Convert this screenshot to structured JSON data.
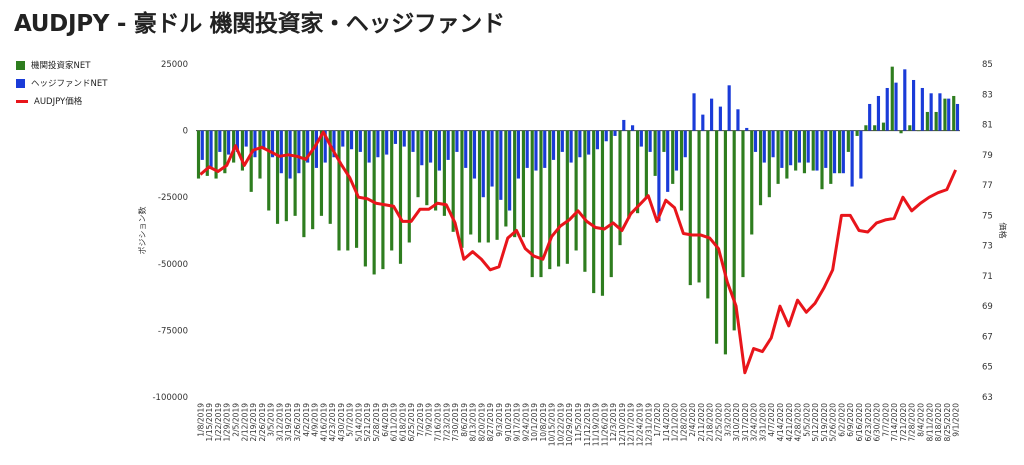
{
  "title": "AUDJPY - 豪ドル 機関投資家・ヘッジファンド",
  "chart_data": {
    "type": "bar",
    "xlabel": "",
    "ylabel": "ポジション数",
    "y2label": "価格",
    "ylim": [
      -100000,
      25000
    ],
    "yticks": [
      25000,
      0,
      -25000,
      -50000,
      -75000,
      -100000
    ],
    "y2lim": [
      63,
      85
    ],
    "y2ticks": [
      85,
      83,
      81,
      79,
      77,
      75,
      73,
      71,
      69,
      67,
      65,
      63
    ],
    "colors": {
      "inst": "#2e7d1f",
      "hedge": "#1a3bd8",
      "price": "#e8151b"
    },
    "categories": [
      "1/8/2019",
      "1/15/2019",
      "1/22/2019",
      "1/29/2019",
      "2/5/2019",
      "2/12/2019",
      "2/19/2019",
      "2/26/2019",
      "3/5/2019",
      "3/12/2019",
      "3/19/2019",
      "3/26/2019",
      "4/2/2019",
      "4/9/2019",
      "4/16/2019",
      "4/23/2019",
      "4/30/2019",
      "5/7/2019",
      "5/14/2019",
      "5/21/2019",
      "5/28/2019",
      "6/4/2019",
      "6/11/2019",
      "6/18/2019",
      "6/25/2019",
      "7/2/2019",
      "7/9/2019",
      "7/16/2019",
      "7/23/2019",
      "7/30/2019",
      "8/6/2019",
      "8/13/2019",
      "8/20/2019",
      "8/27/2019",
      "9/3/2019",
      "9/10/2019",
      "9/17/2019",
      "9/24/2019",
      "10/1/2019",
      "10/8/2019",
      "10/15/2019",
      "10/22/2019",
      "10/29/2019",
      "11/5/2019",
      "11/12/2019",
      "11/19/2019",
      "11/26/2019",
      "12/3/2019",
      "12/10/2019",
      "12/17/2019",
      "12/24/2019",
      "12/31/2019",
      "1/7/2020",
      "1/14/2020",
      "1/21/2020",
      "1/28/2020",
      "2/4/2020",
      "2/11/2020",
      "2/18/2020",
      "2/25/2020",
      "3/3/2020",
      "3/10/2020",
      "3/17/2020",
      "3/24/2020",
      "3/31/2020",
      "4/7/2020",
      "4/14/2020",
      "4/21/2020",
      "4/28/2020",
      "5/5/2020",
      "5/12/2020",
      "5/19/2020",
      "5/26/2020",
      "6/2/2020",
      "6/9/2020",
      "6/16/2020",
      "6/23/2020",
      "6/30/2020",
      "7/7/2020",
      "7/14/2020",
      "7/21/2020",
      "7/28/2020",
      "8/4/2020",
      "8/11/2020",
      "8/18/2020",
      "8/25/2020",
      "9/1/2020"
    ],
    "xtick_labels": [
      "1/8/2019",
      "1/15/2019",
      "1/22/2019",
      "1/29/2019",
      "2/5/2019",
      "2/12/2019",
      "2/19/2019",
      "2/26/2019",
      "3/5/2019",
      "3/12/2019",
      "3/19/2019",
      "3/26/2019",
      "4/2/2019",
      "4/9/2019",
      "4/16/2019",
      "4/23/2019",
      "4/30/2019",
      "5/7/2019",
      "5/14/2019",
      "5/21/2019",
      "5/28/2019",
      "6/4/2019",
      "6/11/2019",
      "6/18/2019",
      "6/25/2019",
      "7/2/2019",
      "7/9/2019",
      "7/16/2019",
      "7/23/2019",
      "7/30/2019",
      "8/6/2019",
      "8/13/2019",
      "8/20/2019",
      "8/27/2019",
      "9/3/2019",
      "9/10/2019",
      "9/17/2019",
      "9/24/2019",
      "10/1/2019",
      "10/8/2019",
      "10/15/2019",
      "10/22/2019",
      "10/29/2019",
      "11/5/2019",
      "11/12/2019",
      "11/19/2019",
      "11/26/2019",
      "12/3/2019",
      "12/10/2019",
      "12/17/2019",
      "12/24/2019",
      "12/31/2019",
      "1/7/2020",
      "1/14/2020",
      "1/21/2020",
      "1/28/2020",
      "2/4/2020",
      "2/11/2020",
      "2/18/2020",
      "2/25/2020",
      "3/3/2020",
      "3/10/2020",
      "3/17/2020",
      "3/24/2020",
      "3/31/2020",
      "4/7/2020",
      "4/14/2020",
      "4/21/2020",
      "4/28/2020",
      "5/5/2020",
      "5/12/2020",
      "5/19/2020",
      "5/26/2020",
      "6/2/2020",
      "6/9/2020",
      "6/16/2020",
      "6/23/2020",
      "6/30/2020",
      "7/7/2020",
      "7/14/2020",
      "7/21/2020",
      "7/28/2020",
      "8/4/2020",
      "8/11/2020",
      "8/18/2020",
      "8/25/2020",
      "9/1/2020"
    ],
    "series": [
      {
        "name": "機関投資家NET",
        "axis": "left",
        "kind": "bar",
        "values": [
          -18000,
          -17000,
          -18000,
          -16000,
          -12000,
          -15000,
          -23000,
          -18000,
          -30000,
          -35000,
          -34000,
          -32000,
          -40000,
          -37000,
          -32000,
          -35000,
          -45000,
          -45000,
          -44000,
          -51000,
          -54000,
          -52000,
          -45000,
          -50000,
          -42000,
          -25000,
          -28000,
          -30000,
          -32000,
          -38000,
          -44000,
          -39000,
          -42000,
          -42000,
          -41000,
          -36000,
          -40000,
          -40000,
          -55000,
          -55000,
          -52000,
          -51000,
          -50000,
          -45000,
          -53000,
          -61000,
          -62000,
          -55000,
          -43000,
          -33000,
          -31000,
          -25000,
          -17000,
          -8000,
          -20000,
          -30000,
          -58000,
          -57000,
          -63000,
          -80000,
          -84000,
          -75000,
          -55000,
          -39000,
          -28000,
          -25000,
          -20000,
          -18000,
          -15000,
          -16000,
          -15000,
          -22000,
          -20000,
          -16000,
          -8000,
          -2000,
          2000,
          2000,
          3000,
          24000,
          -1000,
          2000,
          0,
          7000,
          7000,
          12000,
          13000
        ]
      },
      {
        "name": "ヘッジファンドNET",
        "axis": "left",
        "kind": "bar",
        "values": [
          -11000,
          -14000,
          -8000,
          -9000,
          -8000,
          -6000,
          -10000,
          -7000,
          -10000,
          -16000,
          -18000,
          -16000,
          -12000,
          -14000,
          -12000,
          -10000,
          -6000,
          -7000,
          -8000,
          -12000,
          -10000,
          -9000,
          -5000,
          -6000,
          -8000,
          -13000,
          -12000,
          -15000,
          -11000,
          -8000,
          -14000,
          -18000,
          -25000,
          -21000,
          -26000,
          -30000,
          -18000,
          -14000,
          -15000,
          -14000,
          -11000,
          -8000,
          -12000,
          -10000,
          -9000,
          -7000,
          -4000,
          -2000,
          4000,
          2000,
          -6000,
          -8000,
          -34000,
          -23000,
          -15000,
          -10000,
          14000,
          6000,
          12000,
          9000,
          17000,
          8000,
          1000,
          -8000,
          -12000,
          -10000,
          -14000,
          -13000,
          -12000,
          -12000,
          -15000,
          -14000,
          -16000,
          -16000,
          -21000,
          -18000,
          10000,
          13000,
          16000,
          18000,
          23000,
          19000,
          16000,
          14000,
          14000,
          12000,
          10000
        ]
      },
      {
        "name": "AUDJPY価格",
        "axis": "right",
        "kind": "line",
        "values": [
          77.7,
          78.2,
          77.9,
          78.3,
          79.6,
          78.3,
          79.3,
          79.5,
          79.2,
          78.9,
          79.0,
          78.9,
          78.7,
          79.5,
          80.5,
          79.4,
          78.4,
          77.5,
          76.2,
          76.1,
          75.8,
          75.7,
          75.6,
          74.6,
          74.6,
          75.4,
          75.4,
          75.8,
          75.7,
          74.5,
          72.1,
          72.6,
          72.1,
          71.4,
          71.6,
          73.5,
          74.0,
          72.8,
          72.3,
          72.1,
          73.6,
          74.3,
          74.7,
          75.3,
          74.6,
          74.2,
          74.1,
          74.5,
          74.0,
          75.1,
          75.7,
          76.3,
          74.6,
          76.0,
          75.5,
          73.8,
          73.7,
          73.7,
          73.5,
          72.8,
          70.6,
          69.0,
          64.6,
          66.2,
          66.0,
          66.9,
          69.0,
          67.7,
          69.4,
          68.6,
          69.2,
          70.2,
          71.4,
          75.0,
          75.0,
          74.0,
          73.9,
          74.5,
          74.7,
          74.8,
          76.2,
          75.3,
          75.8,
          76.2,
          76.5,
          76.7,
          78.0
        ]
      }
    ],
    "legend_position": "top-left",
    "grid": false
  }
}
